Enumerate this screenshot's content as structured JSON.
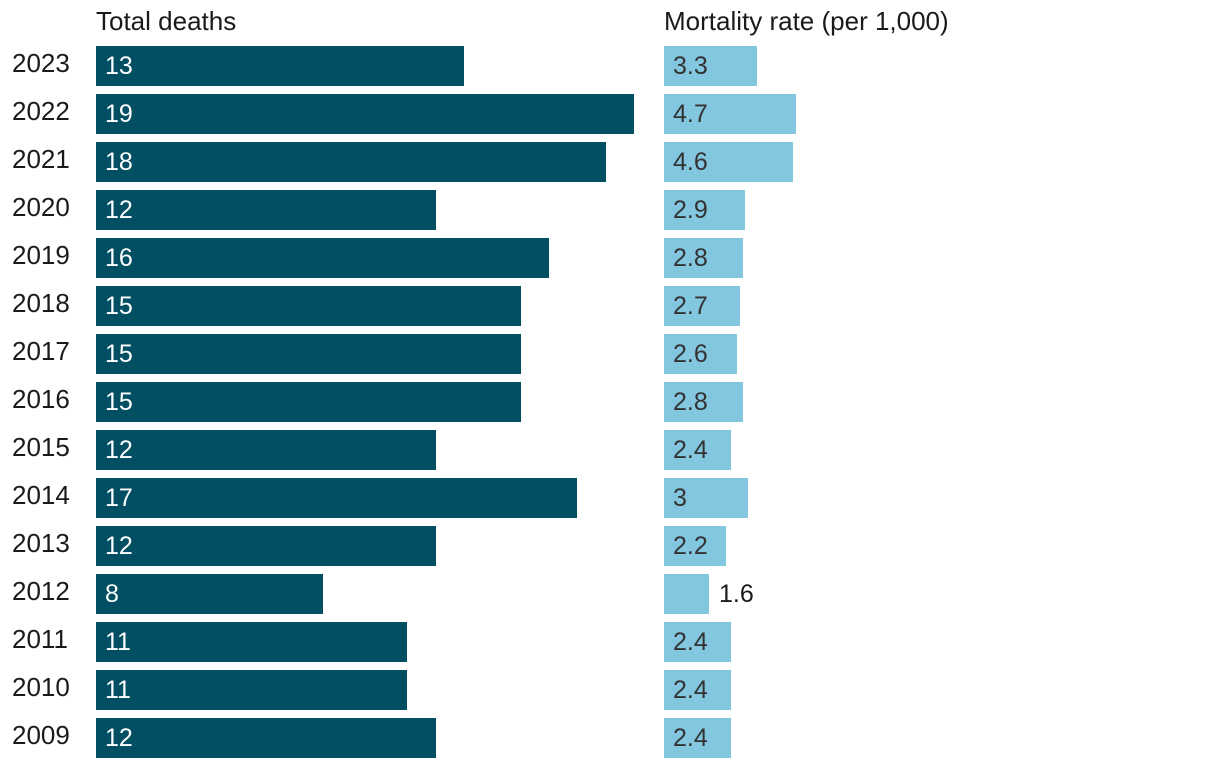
{
  "chart_data": {
    "type": "bar",
    "orientation": "horizontal",
    "categories": [
      "2023",
      "2022",
      "2021",
      "2020",
      "2019",
      "2018",
      "2017",
      "2016",
      "2015",
      "2014",
      "2013",
      "2012",
      "2011",
      "2010",
      "2009"
    ],
    "series": [
      {
        "name": "Total deaths",
        "title": "Total deaths",
        "color": "#024f64",
        "label_color": "#ffffff",
        "values": [
          13,
          19,
          18,
          12,
          16,
          15,
          15,
          15,
          12,
          17,
          12,
          8,
          11,
          11,
          12
        ],
        "labels": [
          "13",
          "19",
          "18",
          "12",
          "16",
          "15",
          "15",
          "15",
          "12",
          "17",
          "12",
          "8",
          "11",
          "11",
          "12"
        ],
        "xlim": [
          0,
          19
        ]
      },
      {
        "name": "Mortality rate (per 1,000)",
        "title": "Mortality rate (per 1,000)",
        "color": "#82c6df",
        "label_color": "#333333",
        "values": [
          3.3,
          4.7,
          4.6,
          2.9,
          2.8,
          2.7,
          2.6,
          2.8,
          2.4,
          3,
          2.2,
          1.6,
          2.4,
          2.4,
          2.4
        ],
        "labels": [
          "3.3",
          "4.7",
          "4.6",
          "2.9",
          "2.8",
          "2.7",
          "2.6",
          "2.8",
          "2.4",
          "3",
          "2.2",
          "1.6",
          "2.4",
          "2.4",
          "2.4"
        ],
        "xlim": [
          0,
          4.7
        ]
      }
    ],
    "grid": false,
    "legend": "none"
  }
}
